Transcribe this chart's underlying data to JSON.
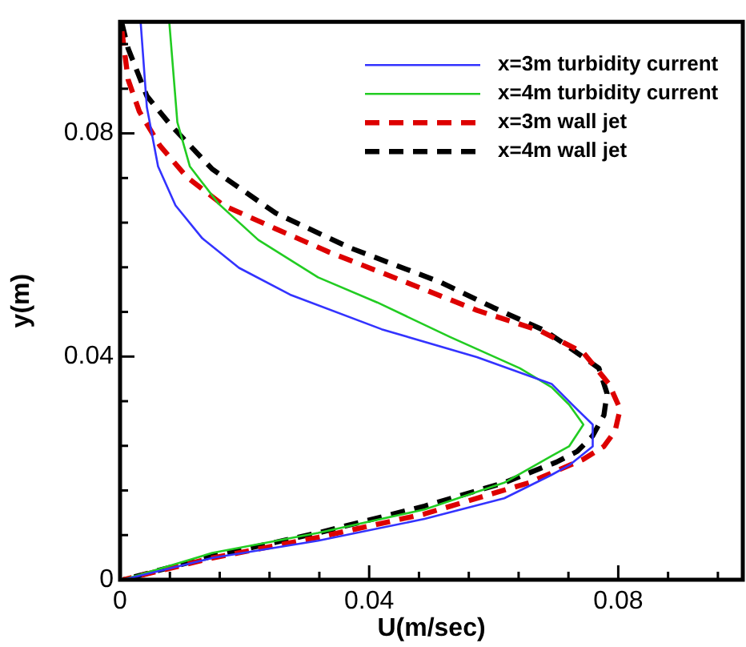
{
  "chart_data": {
    "type": "line",
    "xlabel": "U(m/sec)",
    "ylabel": "y(m)",
    "xlim": [
      0,
      0.1
    ],
    "ylim": [
      0,
      0.1
    ],
    "xticks": [
      0,
      {
        "value": 0.008,
        "label": null
      },
      {
        "value": 0.016,
        "label": null
      },
      {
        "value": 0.024,
        "label": null
      },
      {
        "value": 0.032,
        "label": null
      },
      0.04,
      {
        "value": 0.048,
        "label": null
      },
      {
        "value": 0.056,
        "label": null
      },
      {
        "value": 0.064,
        "label": null
      },
      {
        "value": 0.072,
        "label": null
      },
      0.08,
      {
        "value": 0.088,
        "label": null
      },
      {
        "value": 0.096,
        "label": null
      }
    ],
    "yticks": [
      0,
      {
        "value": 0.008,
        "label": null
      },
      {
        "value": 0.016,
        "label": null
      },
      {
        "value": 0.024,
        "label": null
      },
      {
        "value": 0.032,
        "label": null
      },
      0.04,
      {
        "value": 0.048,
        "label": null
      },
      {
        "value": 0.056,
        "label": null
      },
      {
        "value": 0.064,
        "label": null
      },
      {
        "value": 0.072,
        "label": null
      },
      0.08,
      {
        "value": 0.088,
        "label": null
      },
      {
        "value": 0.096,
        "label": null
      }
    ],
    "legend": "top right",
    "marker": "none",
    "series": [
      {
        "name": "x=3m turbidity current",
        "color": "#3333ff",
        "line_style": "solid",
        "x": [
          0.0033,
          0.0043,
          0.0061,
          0.0089,
          0.0132,
          0.0191,
          0.0273,
          0.042,
          0.0573,
          0.0693,
          0.0726,
          0.0759,
          0.0759,
          0.0721,
          0.0693,
          0.0617,
          0.0489,
          0.0318,
          0.0148,
          0.0005
        ],
        "values": [
          0.1,
          0.0847,
          0.0741,
          0.0671,
          0.0612,
          0.0559,
          0.0511,
          0.0449,
          0.0399,
          0.0351,
          0.0314,
          0.0278,
          0.0239,
          0.0205,
          0.0188,
          0.0146,
          0.0109,
          0.007,
          0.0039,
          0
        ]
      },
      {
        "name": "x=4m turbidity current",
        "color": "#22cc22",
        "line_style": "solid",
        "x": [
          0.0079,
          0.0092,
          0.0112,
          0.0158,
          0.0222,
          0.0318,
          0.0413,
          0.053,
          0.0642,
          0.0693,
          0.0721,
          0.0744,
          0.0721,
          0.0693,
          0.0617,
          0.0489,
          0.0318,
          0.0148,
          0.0005
        ],
        "values": [
          0.1,
          0.082,
          0.0741,
          0.0674,
          0.0609,
          0.0542,
          0.0497,
          0.0435,
          0.0379,
          0.0345,
          0.0314,
          0.0278,
          0.0239,
          0.0222,
          0.0174,
          0.0126,
          0.0084,
          0.0048,
          0
        ]
      },
      {
        "name": "x=3m wall jet",
        "color": "#dd0000",
        "line_style": "dashed",
        "x": [
          0.0003,
          0.0013,
          0.0031,
          0.0064,
          0.0107,
          0.0166,
          0.025,
          0.0336,
          0.0446,
          0.0573,
          0.0675,
          0.0744,
          0.0785,
          0.0803,
          0.0795,
          0.0777,
          0.0744,
          0.0657,
          0.0489,
          0.0318,
          0.0148,
          0.0005
        ],
        "values": [
          0.0983,
          0.0896,
          0.0839,
          0.0778,
          0.0722,
          0.0671,
          0.0629,
          0.0587,
          0.0539,
          0.0483,
          0.0446,
          0.0407,
          0.0351,
          0.0306,
          0.0267,
          0.0239,
          0.0216,
          0.0174,
          0.0118,
          0.0076,
          0.0039,
          0
        ]
      },
      {
        "name": "x=4m wall jet",
        "color": "#000000",
        "line_style": "dashed",
        "x": [
          0.0003,
          0.0013,
          0.0043,
          0.0082,
          0.0148,
          0.025,
          0.0369,
          0.0515,
          0.0599,
          0.0683,
          0.0744,
          0.0769,
          0.0782,
          0.0777,
          0.0759,
          0.0734,
          0.0701,
          0.0617,
          0.0489,
          0.0318,
          0.0148,
          0.0005
        ],
        "values": [
          0.0997,
          0.0952,
          0.0867,
          0.0814,
          0.0736,
          0.0657,
          0.0595,
          0.0533,
          0.0488,
          0.0446,
          0.0399,
          0.0379,
          0.0334,
          0.0295,
          0.0258,
          0.023,
          0.0211,
          0.0174,
          0.0132,
          0.0084,
          0.0042,
          0
        ]
      }
    ]
  }
}
